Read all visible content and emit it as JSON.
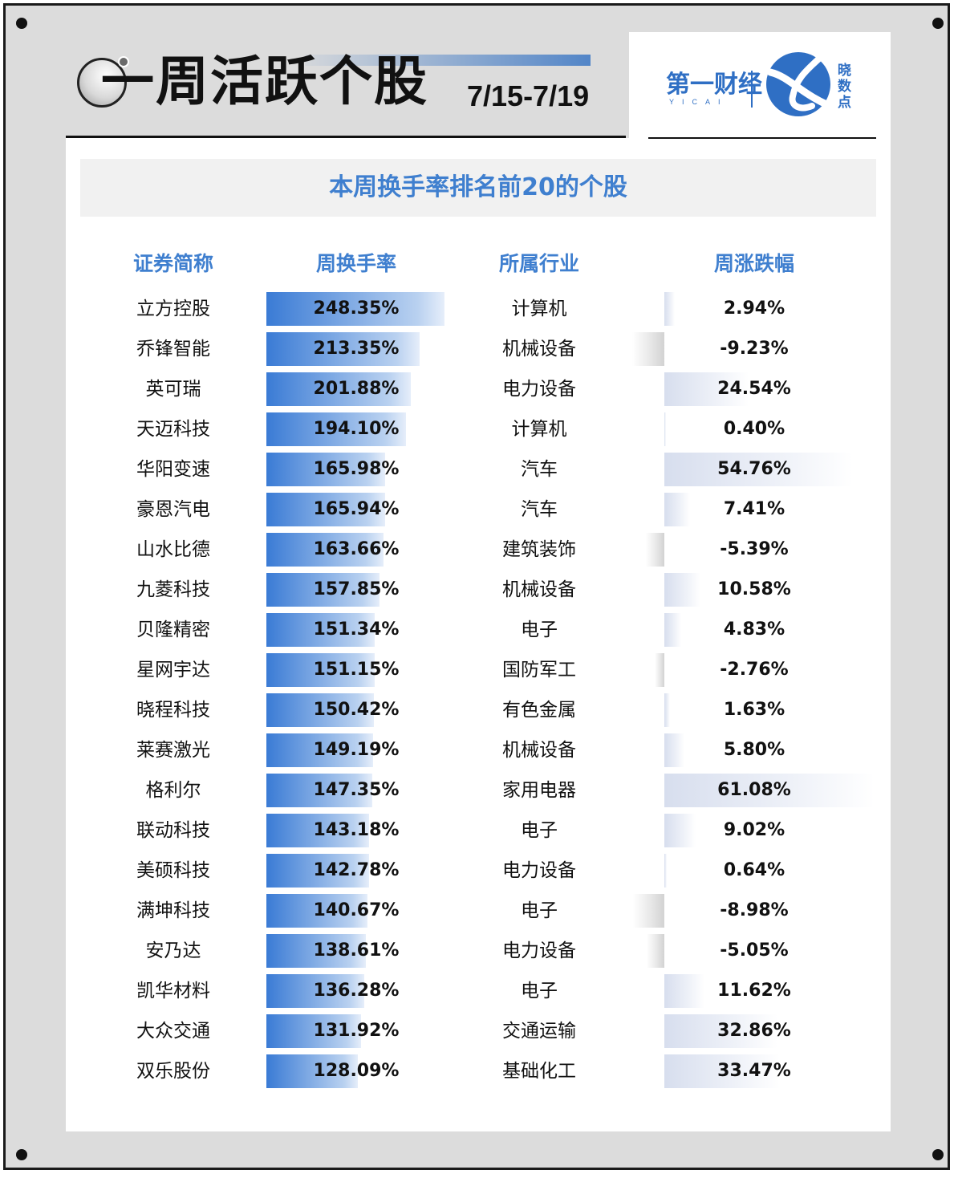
{
  "header": {
    "title": "一周活跃个股",
    "date_range": "7/15-7/19"
  },
  "brand": {
    "name": "第一财经",
    "sub": "YICAI",
    "logo_chars": "晓数点",
    "accent_color": "#2f6fc4"
  },
  "chart_data": {
    "type": "table",
    "title": "本周换手率排名前20的个股",
    "columns": [
      "证券简称",
      "周换手率",
      "所属行业",
      "周涨跌幅"
    ],
    "rows": [
      {
        "name": "立方控股",
        "turnover": 248.35,
        "turnover_label": "248.35%",
        "industry": "计算机",
        "change": 2.94,
        "change_label": "2.94%"
      },
      {
        "name": "乔锋智能",
        "turnover": 213.35,
        "turnover_label": "213.35%",
        "industry": "机械设备",
        "change": -9.23,
        "change_label": "-9.23%"
      },
      {
        "name": "英可瑞",
        "turnover": 201.88,
        "turnover_label": "201.88%",
        "industry": "电力设备",
        "change": 24.54,
        "change_label": "24.54%"
      },
      {
        "name": "天迈科技",
        "turnover": 194.1,
        "turnover_label": "194.10%",
        "industry": "计算机",
        "change": 0.4,
        "change_label": "0.40%"
      },
      {
        "name": "华阳变速",
        "turnover": 165.98,
        "turnover_label": "165.98%",
        "industry": "汽车",
        "change": 54.76,
        "change_label": "54.76%"
      },
      {
        "name": "豪恩汽电",
        "turnover": 165.94,
        "turnover_label": "165.94%",
        "industry": "汽车",
        "change": 7.41,
        "change_label": "7.41%"
      },
      {
        "name": "山水比德",
        "turnover": 163.66,
        "turnover_label": "163.66%",
        "industry": "建筑装饰",
        "change": -5.39,
        "change_label": "-5.39%"
      },
      {
        "name": "九菱科技",
        "turnover": 157.85,
        "turnover_label": "157.85%",
        "industry": "机械设备",
        "change": 10.58,
        "change_label": "10.58%"
      },
      {
        "name": "贝隆精密",
        "turnover": 151.34,
        "turnover_label": "151.34%",
        "industry": "电子",
        "change": 4.83,
        "change_label": "4.83%"
      },
      {
        "name": "星网宇达",
        "turnover": 151.15,
        "turnover_label": "151.15%",
        "industry": "国防军工",
        "change": -2.76,
        "change_label": "-2.76%"
      },
      {
        "name": "晓程科技",
        "turnover": 150.42,
        "turnover_label": "150.42%",
        "industry": "有色金属",
        "change": 1.63,
        "change_label": "1.63%"
      },
      {
        "name": "莱赛激光",
        "turnover": 149.19,
        "turnover_label": "149.19%",
        "industry": "机械设备",
        "change": 5.8,
        "change_label": "5.80%"
      },
      {
        "name": "格利尔",
        "turnover": 147.35,
        "turnover_label": "147.35%",
        "industry": "家用电器",
        "change": 61.08,
        "change_label": "61.08%"
      },
      {
        "name": "联动科技",
        "turnover": 143.18,
        "turnover_label": "143.18%",
        "industry": "电子",
        "change": 9.02,
        "change_label": "9.02%"
      },
      {
        "name": "美硕科技",
        "turnover": 142.78,
        "turnover_label": "142.78%",
        "industry": "电力设备",
        "change": 0.64,
        "change_label": "0.64%"
      },
      {
        "name": "满坤科技",
        "turnover": 140.67,
        "turnover_label": "140.67%",
        "industry": "电子",
        "change": -8.98,
        "change_label": "-8.98%"
      },
      {
        "name": "安乃达",
        "turnover": 138.61,
        "turnover_label": "138.61%",
        "industry": "电力设备",
        "change": -5.05,
        "change_label": "-5.05%"
      },
      {
        "name": "凯华材料",
        "turnover": 136.28,
        "turnover_label": "136.28%",
        "industry": "电子",
        "change": 11.62,
        "change_label": "11.62%"
      },
      {
        "name": "大众交通",
        "turnover": 131.92,
        "turnover_label": "131.92%",
        "industry": "交通运输",
        "change": 32.86,
        "change_label": "32.86%"
      },
      {
        "name": "双乐股份",
        "turnover": 128.09,
        "turnover_label": "128.09%",
        "industry": "基础化工",
        "change": 33.47,
        "change_label": "33.47%"
      }
    ],
    "colors": {
      "turnover_bar": "#3a7bd5",
      "header_text": "#3f7fcf",
      "positive_bar": "#d7deee",
      "negative_bar": "#d2d2d2"
    }
  }
}
